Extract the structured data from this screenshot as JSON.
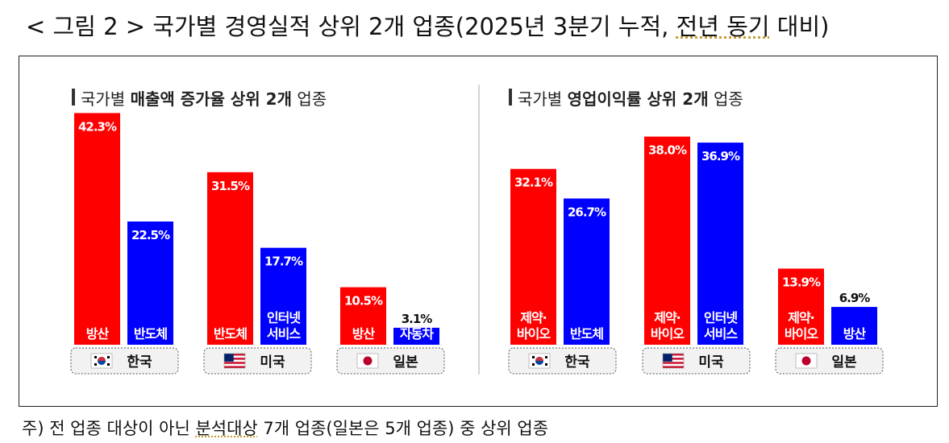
{
  "title": {
    "pre": "< 그림 2 > 국가별 경영실적 상위 2개 업종(2025년 3분기 누적, ",
    "hl": "전년 동기",
    "post": " 대비)"
  },
  "footnote": {
    "pre": "주) 전 업종 대상이 아닌 ",
    "hl": "분석대상",
    "post": " 7개 업종(일본은 5개 업종) 중 상위 업종"
  },
  "colors": {
    "red": "#ff0000",
    "blue": "#0000ff",
    "pill_fill": "#f2f2f2"
  },
  "chart_data": [
    {
      "type": "bar",
      "title": {
        "pre": "국가별 ",
        "bold": "매출액 증가율 상위 2개",
        "post": "업종"
      },
      "groups": [
        {
          "country": "한국",
          "flag": "korea-flag-icon",
          "bars": [
            {
              "label": [
                "방산"
              ],
              "value": 42.3,
              "color": "red"
            },
            {
              "label": [
                "반도체"
              ],
              "value": 22.5,
              "color": "blue"
            }
          ]
        },
        {
          "country": "미국",
          "flag": "usa-flag-icon",
          "bars": [
            {
              "label": [
                "반도체"
              ],
              "value": 31.5,
              "color": "red"
            },
            {
              "label": [
                "인터넷",
                "서비스"
              ],
              "value": 17.7,
              "color": "blue"
            }
          ]
        },
        {
          "country": "일본",
          "flag": "japan-flag-icon",
          "bars": [
            {
              "label": [
                "방산"
              ],
              "value": 10.5,
              "color": "red"
            },
            {
              "label": [
                "자동차"
              ],
              "value": 3.1,
              "color": "blue"
            }
          ]
        }
      ]
    },
    {
      "type": "bar",
      "title": {
        "pre": "국가별 ",
        "bold": "영업이익률 상위 2개",
        "post": "업종"
      },
      "groups": [
        {
          "country": "한국",
          "flag": "korea-flag-icon",
          "bars": [
            {
              "label": [
                "제약·",
                "바이오"
              ],
              "value": 32.1,
              "color": "red"
            },
            {
              "label": [
                "반도체"
              ],
              "value": 26.7,
              "color": "blue"
            }
          ]
        },
        {
          "country": "미국",
          "flag": "usa-flag-icon",
          "bars": [
            {
              "label": [
                "제약·",
                "바이오"
              ],
              "value": 38.0,
              "color": "red"
            },
            {
              "label": [
                "인터넷",
                "서비스"
              ],
              "value": 36.9,
              "color": "blue"
            }
          ]
        },
        {
          "country": "일본",
          "flag": "japan-flag-icon",
          "bars": [
            {
              "label": [
                "제약·",
                "바이오"
              ],
              "value": 13.9,
              "color": "red"
            },
            {
              "label": [
                "방산"
              ],
              "value": 6.9,
              "color": "blue"
            }
          ]
        }
      ]
    }
  ]
}
